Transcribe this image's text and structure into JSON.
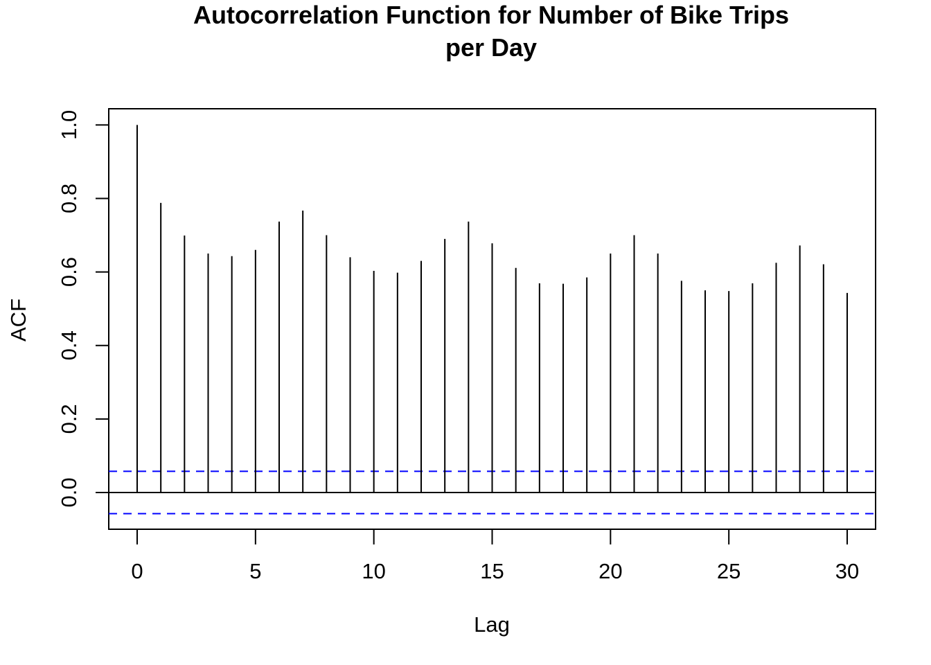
{
  "chart_data": {
    "type": "bar",
    "title_lines": [
      "Autocorrelation Function for Number of Bike Trips",
      "per Day"
    ],
    "xlabel": "Lag",
    "ylabel": "ACF",
    "x": [
      0,
      1,
      2,
      3,
      4,
      5,
      6,
      7,
      8,
      9,
      10,
      11,
      12,
      13,
      14,
      15,
      16,
      17,
      18,
      19,
      20,
      21,
      22,
      23,
      24,
      25,
      26,
      27,
      28,
      29,
      30
    ],
    "values": [
      1.0,
      0.788,
      0.699,
      0.65,
      0.643,
      0.66,
      0.737,
      0.767,
      0.7,
      0.64,
      0.603,
      0.598,
      0.63,
      0.69,
      0.737,
      0.678,
      0.611,
      0.569,
      0.568,
      0.585,
      0.65,
      0.7,
      0.65,
      0.576,
      0.55,
      0.548,
      0.569,
      0.625,
      0.672,
      0.621,
      0.543
    ],
    "xlim": [
      -1.2,
      31.2
    ],
    "ylim": [
      -0.1,
      1.044
    ],
    "xticks": [
      0,
      5,
      10,
      15,
      20,
      25,
      30
    ],
    "xtick_labels": [
      "0",
      "5",
      "10",
      "15",
      "20",
      "25",
      "30"
    ],
    "yticks": [
      0.0,
      0.2,
      0.4,
      0.6,
      0.8,
      1.0
    ],
    "ytick_labels": [
      "0.0",
      "0.2",
      "0.4",
      "0.6",
      "0.8",
      "1.0"
    ],
    "confidence_bounds": [
      0.0577,
      -0.0577
    ],
    "colors": {
      "bars": "#000000",
      "confidence": "#0000ff",
      "zero_line": "#000000"
    },
    "grid": false
  }
}
